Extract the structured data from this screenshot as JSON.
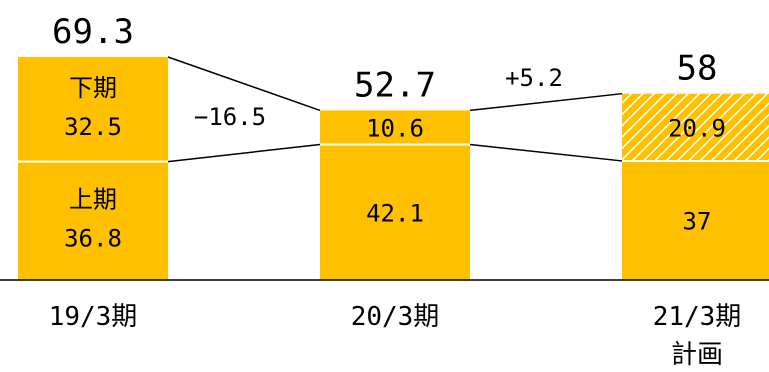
{
  "chart_data": {
    "type": "bar",
    "stacked": true,
    "categories": [
      "19/3期",
      "20/3期",
      "21/3期\n計画"
    ],
    "category_lines": [
      [
        "19/3期"
      ],
      [
        "20/3期"
      ],
      [
        "21/3期",
        "計画"
      ]
    ],
    "series": [
      {
        "name": "上期",
        "values": [
          36.8,
          42.1,
          37
        ]
      },
      {
        "name": "下期",
        "values": [
          32.5,
          10.6,
          20.9
        ]
      }
    ],
    "series_labels_on_first_bar": {
      "lower": "上期",
      "upper": "下期"
    },
    "segment_labels": {
      "lower": [
        "36.8",
        "42.1",
        "37"
      ],
      "upper": [
        "32.5",
        "10.6",
        "20.9"
      ]
    },
    "totals": [
      69.3,
      52.7,
      58
    ],
    "total_labels": [
      "69.3",
      "52.7",
      "58"
    ],
    "changes": [
      {
        "from": "19/3期",
        "to": "20/3期",
        "label": "−16.5",
        "value": -16.5
      },
      {
        "from": "20/3期",
        "to": "21/3期\n計画",
        "label": "+5.2",
        "value": 5.2
      }
    ],
    "ylim": [
      0,
      69.3
    ],
    "grid": false,
    "legend": "none",
    "hatched_segment": {
      "category_index": 2,
      "series": "下期"
    },
    "colors": {
      "bar": "#FFC000",
      "separator": "#ffffff",
      "text": "#000000",
      "connector": "#000000",
      "hatch_stripe": "#ffffff"
    }
  }
}
